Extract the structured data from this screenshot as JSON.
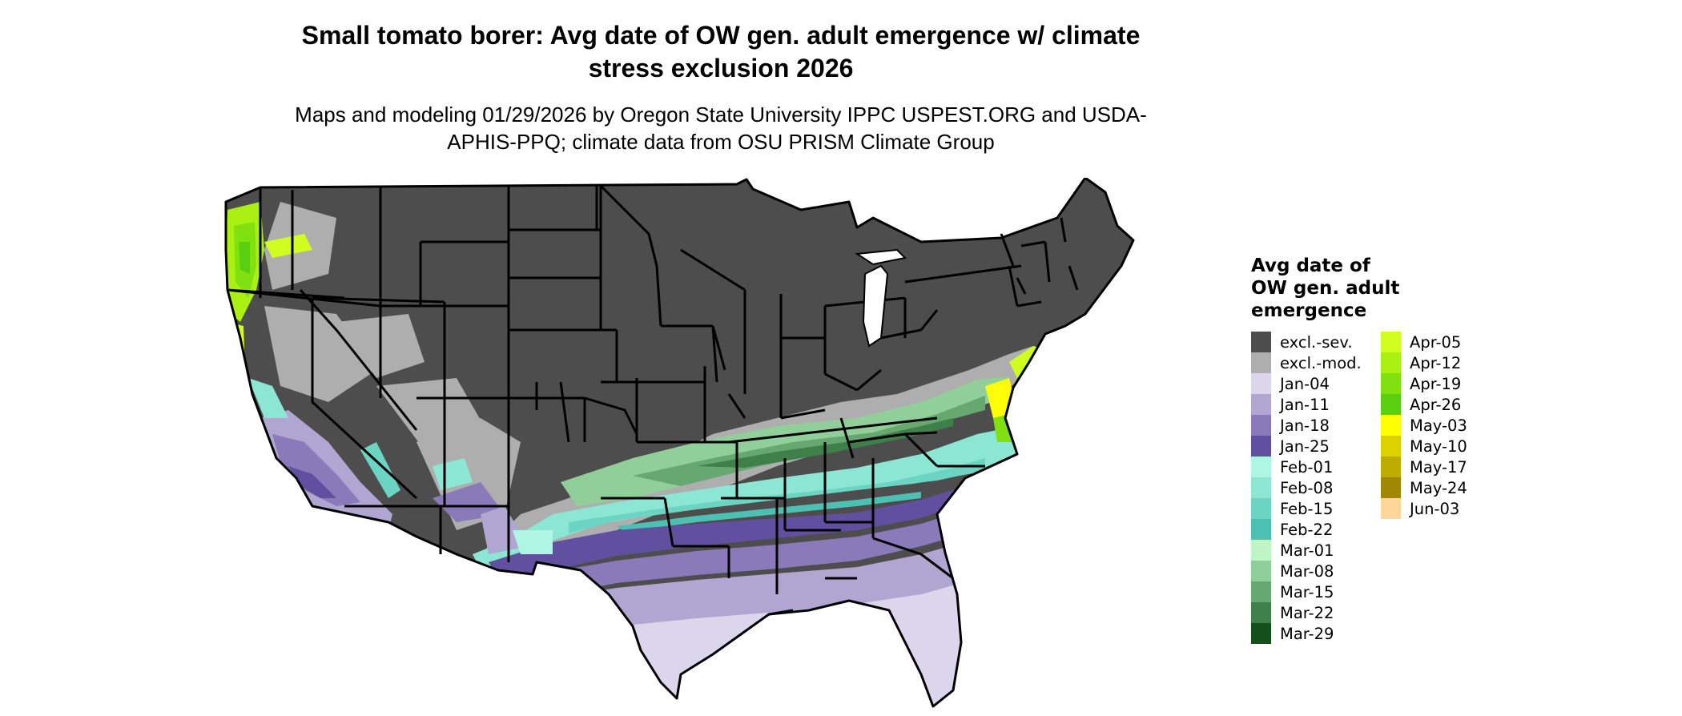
{
  "title": "Small tomato borer: Avg date of OW gen. adult emergence w/ climate stress exclusion 2026",
  "subtitle": "Maps and modeling 01/29/2026 by Oregon State University IPPC USPEST.ORG and USDA-APHIS-PPQ; climate data from OSU PRISM Climate Group",
  "legend": {
    "title": "Avg date of OW gen. adult emergence",
    "items": [
      {
        "label": "excl.-sev.",
        "color": "#4d4d4d"
      },
      {
        "label": "excl.-mod.",
        "color": "#aeaeae"
      },
      {
        "label": "Jan-04",
        "color": "#dcd6ec"
      },
      {
        "label": "Jan-11",
        "color": "#b0a6d1"
      },
      {
        "label": "Jan-18",
        "color": "#8a7ab9"
      },
      {
        "label": "Jan-25",
        "color": "#60509f"
      },
      {
        "label": "Feb-01",
        "color": "#aef5e4"
      },
      {
        "label": "Feb-08",
        "color": "#8be6d4"
      },
      {
        "label": "Feb-15",
        "color": "#6cd4c3"
      },
      {
        "label": "Feb-22",
        "color": "#4cc0b3"
      },
      {
        "label": "Mar-01",
        "color": "#bff5c4"
      },
      {
        "label": "Mar-08",
        "color": "#90cf99"
      },
      {
        "label": "Mar-15",
        "color": "#66a86f"
      },
      {
        "label": "Mar-22",
        "color": "#3f7f4a"
      },
      {
        "label": "Mar-29",
        "color": "#154f19"
      },
      {
        "label": "Apr-05",
        "color": "#d0ff1f"
      },
      {
        "label": "Apr-12",
        "color": "#aaf012"
      },
      {
        "label": "Apr-19",
        "color": "#80e010"
      },
      {
        "label": "Apr-26",
        "color": "#58d010"
      },
      {
        "label": "May-03",
        "color": "#ffff00"
      },
      {
        "label": "May-10",
        "color": "#dcd200"
      },
      {
        "label": "May-17",
        "color": "#bcad00"
      },
      {
        "label": "May-24",
        "color": "#a08800"
      },
      {
        "label": "Jun-03",
        "color": "#ffd79a"
      }
    ]
  }
}
